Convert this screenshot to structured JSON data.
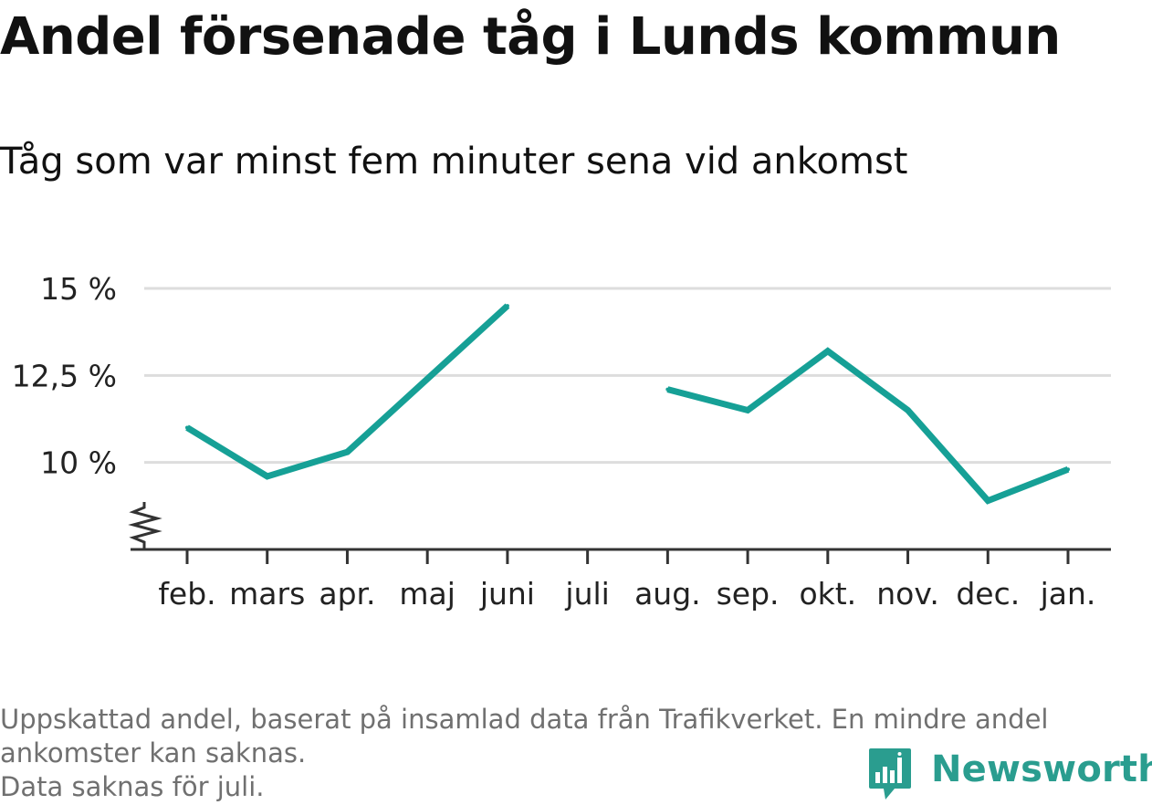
{
  "title": "Andel försenade tåg i Lunds kommun",
  "subtitle": "Tåg som var minst fem minuter sena vid ankomst",
  "footer": {
    "line1": "Uppskattad andel, baserat på insamlad data från Trafikverket. En mindre andel ankomster kan saknas.",
    "line2": "Data saknas för juli."
  },
  "brand": {
    "name": "Newsworthy",
    "logo_icon": "newsworthy-chart-icon",
    "color": "#2a9d8f"
  },
  "colors": {
    "line": "#16a096",
    "grid": "#dddddd",
    "axis": "#333333",
    "text": "#222222"
  },
  "chart_data": {
    "type": "line",
    "categories": [
      "feb.",
      "mars",
      "apr.",
      "maj",
      "juni",
      "juli",
      "aug.",
      "sep.",
      "okt.",
      "nov.",
      "dec.",
      "jan."
    ],
    "series": [
      {
        "values": [
          11.0,
          9.6,
          10.3,
          12.4,
          14.5,
          null,
          12.1,
          11.5,
          13.2,
          11.5,
          8.9,
          9.8
        ]
      }
    ],
    "yticks": [
      10,
      12.5,
      15
    ],
    "ytick_labels": [
      "10 %",
      "12,5 %",
      "15 %"
    ],
    "ylim": [
      7.5,
      15
    ],
    "y_axis_break": true,
    "grid": true,
    "legend": "none",
    "xlabel": "",
    "ylabel": ""
  }
}
